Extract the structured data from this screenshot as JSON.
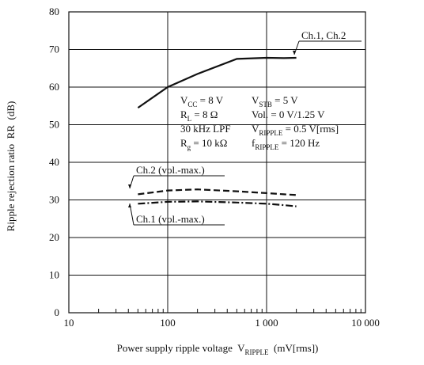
{
  "chart_data": {
    "type": "line",
    "xlabel": [
      {
        "text": "Power supply ripple voltage  V"
      },
      {
        "sub": "RIPPLE"
      },
      {
        "text": "  (mV[rms])"
      }
    ],
    "ylabel": "Ripple rejection ratio  RR  (dB)",
    "xscale": "log",
    "xlim": [
      10,
      10000
    ],
    "ylim": [
      0,
      80
    ],
    "xticks": [
      10,
      100,
      {
        "value": 1000,
        "label": "1 000"
      },
      {
        "value": 10000,
        "label": "10 000"
      }
    ],
    "xminor_ticks": [
      20,
      30,
      40,
      50,
      60,
      70,
      80,
      90,
      200,
      300,
      400,
      500,
      600,
      700,
      800,
      900,
      2000,
      3000,
      4000,
      5000,
      6000,
      7000,
      8000,
      9000
    ],
    "yticks": [
      0,
      10,
      20,
      30,
      40,
      50,
      60,
      70,
      80
    ],
    "grid": true,
    "x": [
      50,
      100,
      200,
      500,
      1000,
      1500,
      2000
    ],
    "series": [
      {
        "name": "Ch.1, Ch.2",
        "color": "#111111",
        "dash": "solid",
        "values": [
          54.5,
          60,
          63.5,
          67.5,
          67.8,
          67.7,
          67.8
        ]
      },
      {
        "name": "Ch.2 (vol.-max.)",
        "color": "#111111",
        "dash": "dashed",
        "values": [
          31.5,
          32.5,
          32.8,
          32.3,
          31.8,
          31.5,
          31.3
        ]
      },
      {
        "name": "Ch.1 (vol.-max.)",
        "color": "#111111",
        "dash": "dashdot",
        "values": [
          29,
          29.5,
          29.6,
          29.3,
          29,
          28.6,
          28.3
        ]
      }
    ],
    "annotations": [
      [
        {
          "text": "V"
        },
        {
          "sub": "CC"
        },
        {
          "text": " = 8 V"
        }
      ],
      [
        {
          "text": "V"
        },
        {
          "sub": "STB"
        },
        {
          "text": " = 5 V"
        }
      ],
      [
        {
          "text": "R"
        },
        {
          "sub": "L"
        },
        {
          "text": " = 8 Ω"
        }
      ],
      [
        {
          "text": "Vol. = 0 V/1.25 V"
        }
      ],
      [
        {
          "text": "30 kHz LPF"
        }
      ],
      [
        {
          "text": "V"
        },
        {
          "sub": "RIPPLE"
        },
        {
          "text": " = 0.5 V[rms]"
        }
      ],
      [
        {
          "text": "R"
        },
        {
          "sub": "g"
        },
        {
          "text": " = 10 kΩ"
        }
      ],
      [
        {
          "text": "f"
        },
        {
          "sub": "RIPPLE"
        },
        {
          "text": " = 120 Hz"
        }
      ]
    ]
  }
}
